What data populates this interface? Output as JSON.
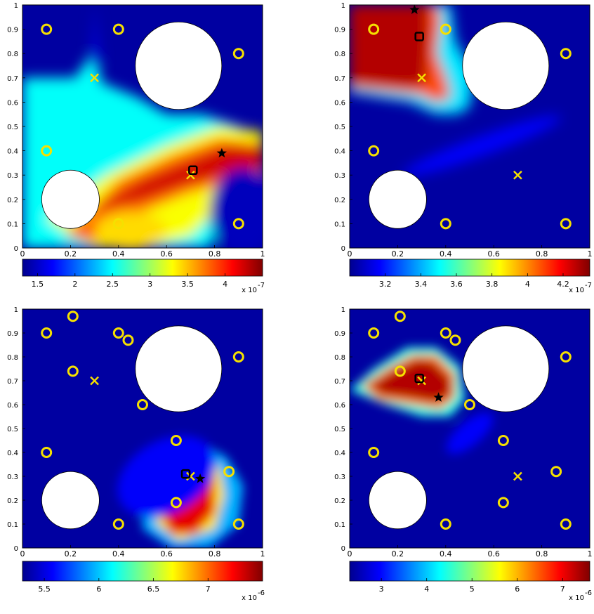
{
  "chart_data": [
    {
      "type": "heatmap",
      "title": "",
      "xlabel": "",
      "ylabel": "",
      "xlim": [
        0,
        1
      ],
      "ylim": [
        0,
        1
      ],
      "xticks": [
        "0",
        "0.2",
        "0.4",
        "0.6",
        "0.8",
        "1"
      ],
      "yticks": [
        "0",
        "0.1",
        "0.2",
        "0.3",
        "0.4",
        "0.5",
        "0.6",
        "0.7",
        "0.8",
        "0.9",
        "1"
      ],
      "colorbar": {
        "ticks": [
          "1.5",
          "2",
          "2.5",
          "3",
          "3.5",
          "4"
        ],
        "tick_values": [
          1.5,
          2,
          2.5,
          3,
          3.5,
          4
        ],
        "range": [
          1.3,
          4.5
        ],
        "exponent": "x 10",
        "power": "-7"
      },
      "obstacles": [
        {
          "cx": 0.65,
          "cy": 0.75,
          "r": 0.18
        },
        {
          "cx": 0.2,
          "cy": 0.2,
          "r": 0.12
        }
      ],
      "sensors": [
        [
          0.1,
          0.9
        ],
        [
          0.4,
          0.9
        ],
        [
          0.9,
          0.8
        ],
        [
          0.1,
          0.4
        ],
        [
          0.4,
          0.1
        ],
        [
          0.9,
          0.1
        ]
      ],
      "source": [
        0.3,
        0.7
      ],
      "true_source": [
        0.7,
        0.3
      ],
      "estimate_square": [
        0.71,
        0.32
      ],
      "estimate_star": [
        0.83,
        0.39
      ]
    },
    {
      "type": "heatmap",
      "title": "",
      "xlabel": "",
      "ylabel": "",
      "xlim": [
        0,
        1
      ],
      "ylim": [
        0,
        1
      ],
      "xticks": [
        "0",
        "0.2",
        "0.4",
        "0.6",
        "0.8",
        "1"
      ],
      "yticks": [
        "0",
        "0.1",
        "0.2",
        "0.3",
        "0.4",
        "0.5",
        "0.6",
        "0.7",
        "0.8",
        "0.9",
        "1"
      ],
      "colorbar": {
        "ticks": [
          "3.2",
          "3.4",
          "3.6",
          "3.8",
          "4",
          "4.2"
        ],
        "tick_values": [
          3.2,
          3.4,
          3.6,
          3.8,
          4,
          4.2
        ],
        "range": [
          3.0,
          4.35
        ],
        "exponent": "x 10",
        "power": "-7"
      },
      "obstacles": [
        {
          "cx": 0.65,
          "cy": 0.75,
          "r": 0.18
        },
        {
          "cx": 0.2,
          "cy": 0.2,
          "r": 0.12
        }
      ],
      "sensors": [
        [
          0.1,
          0.9
        ],
        [
          0.4,
          0.9
        ],
        [
          0.9,
          0.8
        ],
        [
          0.1,
          0.4
        ],
        [
          0.4,
          0.1
        ],
        [
          0.9,
          0.1
        ]
      ],
      "source": [
        0.7,
        0.3
      ],
      "true_source": [
        0.3,
        0.7
      ],
      "estimate_square": [
        0.29,
        0.87
      ],
      "estimate_star": [
        0.27,
        0.98
      ]
    },
    {
      "type": "heatmap",
      "title": "",
      "xlabel": "",
      "ylabel": "",
      "xlim": [
        0,
        1
      ],
      "ylim": [
        0,
        1
      ],
      "xticks": [
        "0",
        "0.2",
        "0.4",
        "0.6",
        "0.8",
        "1"
      ],
      "yticks": [
        "0",
        "0.1",
        "0.2",
        "0.3",
        "0.4",
        "0.5",
        "0.6",
        "0.7",
        "0.8",
        "0.9",
        "1"
      ],
      "colorbar": {
        "ticks": [
          "5.5",
          "6",
          "6.5",
          "7"
        ],
        "tick_values": [
          5.5,
          6,
          6.5,
          7
        ],
        "range": [
          5.3,
          7.5
        ],
        "exponent": "x 10",
        "power": "-6"
      },
      "obstacles": [
        {
          "cx": 0.65,
          "cy": 0.75,
          "r": 0.18
        },
        {
          "cx": 0.2,
          "cy": 0.2,
          "r": 0.12
        }
      ],
      "sensors": [
        [
          0.1,
          0.9
        ],
        [
          0.21,
          0.97
        ],
        [
          0.4,
          0.9
        ],
        [
          0.44,
          0.87
        ],
        [
          0.9,
          0.8
        ],
        [
          0.21,
          0.74
        ],
        [
          0.5,
          0.6
        ],
        [
          0.64,
          0.45
        ],
        [
          0.1,
          0.4
        ],
        [
          0.86,
          0.32
        ],
        [
          0.64,
          0.19
        ],
        [
          0.4,
          0.1
        ],
        [
          0.9,
          0.1
        ]
      ],
      "source": [
        0.3,
        0.7
      ],
      "true_source": [
        0.7,
        0.3
      ],
      "estimate_square": [
        0.68,
        0.31
      ],
      "estimate_star": [
        0.74,
        0.29
      ]
    },
    {
      "type": "heatmap",
      "title": "",
      "xlabel": "",
      "ylabel": "",
      "xlim": [
        0,
        1
      ],
      "ylim": [
        0,
        1
      ],
      "xticks": [
        "0",
        "0.2",
        "0.4",
        "0.6",
        "0.8",
        "1"
      ],
      "yticks": [
        "0",
        "0.1",
        "0.2",
        "0.3",
        "0.4",
        "0.5",
        "0.6",
        "0.7",
        "0.8",
        "0.9",
        "1"
      ],
      "colorbar": {
        "ticks": [
          "3",
          "4",
          "5",
          "6",
          "7"
        ],
        "tick_values": [
          3,
          4,
          5,
          6,
          7
        ],
        "range": [
          2.3,
          7.6
        ],
        "exponent": "x 10",
        "power": "-6"
      },
      "obstacles": [
        {
          "cx": 0.65,
          "cy": 0.75,
          "r": 0.18
        },
        {
          "cx": 0.2,
          "cy": 0.2,
          "r": 0.12
        }
      ],
      "sensors": [
        [
          0.1,
          0.9
        ],
        [
          0.21,
          0.97
        ],
        [
          0.4,
          0.9
        ],
        [
          0.44,
          0.87
        ],
        [
          0.9,
          0.8
        ],
        [
          0.21,
          0.74
        ],
        [
          0.5,
          0.6
        ],
        [
          0.64,
          0.45
        ],
        [
          0.1,
          0.4
        ],
        [
          0.86,
          0.32
        ],
        [
          0.64,
          0.19
        ],
        [
          0.4,
          0.1
        ],
        [
          0.9,
          0.1
        ]
      ],
      "source": [
        0.7,
        0.3
      ],
      "true_source": [
        0.3,
        0.7
      ],
      "estimate_square": [
        0.29,
        0.71
      ],
      "estimate_star": [
        0.37,
        0.63
      ]
    }
  ],
  "colors": {
    "sensor": "#f5e000",
    "source": "#f5e000",
    "marker": "#000000",
    "obstacle": "#ffffff",
    "background": "#00008f"
  }
}
